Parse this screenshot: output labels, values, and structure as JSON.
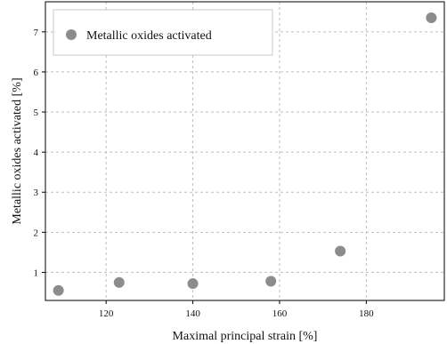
{
  "chart_data": {
    "type": "scatter",
    "title": "",
    "xlabel": "Maximal principal strain [%]",
    "ylabel": "Metallic oxides activated [%]",
    "xlim": [
      106,
      198
    ],
    "ylim": [
      0.3,
      7.75
    ],
    "x_ticks": [
      120,
      140,
      160,
      180
    ],
    "y_ticks": [
      1,
      2,
      3,
      4,
      5,
      6,
      7
    ],
    "grid": true,
    "legend_position": "top-left",
    "series": [
      {
        "name": "Metallic oxides activated",
        "color": "#8c8c8c",
        "points": [
          {
            "x": 109,
            "y": 0.55
          },
          {
            "x": 123,
            "y": 0.75
          },
          {
            "x": 140,
            "y": 0.72
          },
          {
            "x": 158,
            "y": 0.78
          },
          {
            "x": 174,
            "y": 1.53
          },
          {
            "x": 195,
            "y": 7.35
          }
        ]
      }
    ]
  }
}
